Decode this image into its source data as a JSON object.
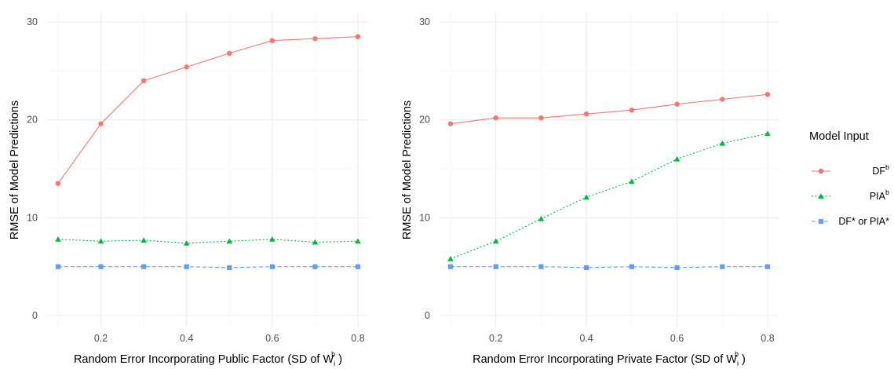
{
  "chart_data": [
    {
      "type": "line",
      "xlabel": "Random Error Incorporating Public Factor (SD of W",
      "xlabel_sub": "i",
      "xlabel_sup": "b",
      "xlabel_end": " )",
      "ylabel": "RMSE of Model Predictions",
      "xlim": [
        0.1,
        0.8
      ],
      "ylim": [
        0,
        30
      ],
      "x_ticks": [
        "0.2",
        "0.4",
        "0.6",
        "0.8"
      ],
      "y_ticks": [
        "0",
        "10",
        "20",
        "30"
      ],
      "grid": true,
      "x": [
        0.1,
        0.2,
        0.3,
        0.4,
        0.5,
        0.6,
        0.7,
        0.8
      ],
      "series": [
        {
          "key": "df",
          "values": [
            13.5,
            19.6,
            24.0,
            25.4,
            26.8,
            28.1,
            28.3,
            28.5
          ]
        },
        {
          "key": "pia",
          "values": [
            7.8,
            7.6,
            7.7,
            7.4,
            7.6,
            7.8,
            7.5,
            7.6
          ]
        },
        {
          "key": "star",
          "values": [
            5.0,
            5.0,
            5.0,
            5.0,
            4.9,
            5.0,
            5.0,
            5.0
          ]
        }
      ]
    },
    {
      "type": "line",
      "xlabel": "Random Error Incorporating Private Factor (SD of W",
      "xlabel_sub": "i",
      "xlabel_sup": "b",
      "xlabel_end": " )",
      "ylabel": "RMSE of Model Predictions",
      "xlim": [
        0.1,
        0.8
      ],
      "ylim": [
        0,
        30
      ],
      "x_ticks": [
        "0.2",
        "0.4",
        "0.6",
        "0.8"
      ],
      "y_ticks": [
        "0",
        "10",
        "20",
        "30"
      ],
      "grid": true,
      "x": [
        0.1,
        0.2,
        0.3,
        0.4,
        0.5,
        0.6,
        0.7,
        0.8
      ],
      "series": [
        {
          "key": "df",
          "values": [
            19.6,
            20.2,
            20.2,
            20.6,
            21.0,
            21.6,
            22.1,
            22.6
          ]
        },
        {
          "key": "pia",
          "values": [
            5.8,
            7.6,
            9.9,
            12.1,
            13.7,
            16.0,
            17.6,
            18.6
          ]
        },
        {
          "key": "star",
          "values": [
            5.0,
            5.0,
            5.0,
            4.9,
            5.0,
            4.9,
            5.0,
            5.0
          ]
        }
      ]
    }
  ],
  "legend": {
    "title": "Model Input",
    "position": "right",
    "entries": [
      {
        "key": "df",
        "label": "DF",
        "sup": "b",
        "color": "#f8766d",
        "marker": "circle",
        "dash": "solid"
      },
      {
        "key": "pia",
        "label": "PIA",
        "sup": "b",
        "color": "#00ba38",
        "marker": "triangle",
        "dash": "dotted"
      },
      {
        "key": "star",
        "label": "DF* or PIA*",
        "sup": "",
        "color": "#619cff",
        "marker": "square",
        "dash": "dashed"
      }
    ]
  }
}
